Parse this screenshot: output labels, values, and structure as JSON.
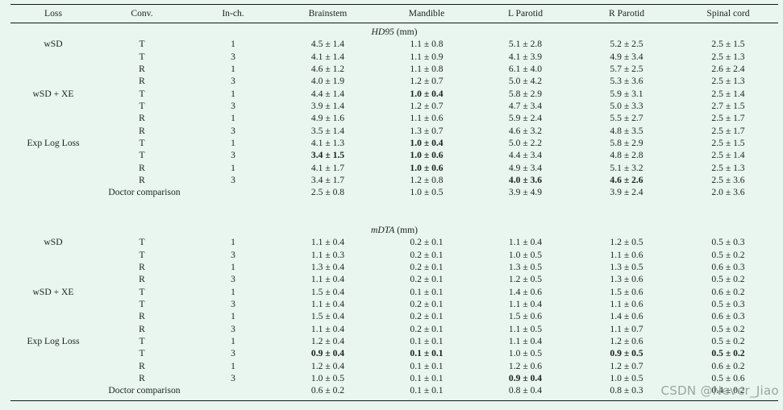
{
  "table": {
    "columns": [
      "Loss",
      "Conv.",
      "In-ch.",
      "Brainstem",
      "Mandible",
      "L Parotid",
      "R Parotid",
      "Spinal cord"
    ],
    "organ_columns": [
      "Brainstem",
      "Mandible",
      "L Parotid",
      "R Parotid",
      "Spinal cord"
    ],
    "sections": [
      {
        "label_italic": "HD95",
        "label_unit": "(mm)",
        "rows": [
          {
            "loss": "wSD",
            "conv": "T",
            "inch": "1",
            "values": [
              "4.5 ± 1.4",
              "1.1 ± 0.8",
              "5.1 ± 2.8",
              "5.2 ± 2.5",
              "2.5 ± 1.5"
            ],
            "bold": []
          },
          {
            "loss": "",
            "conv": "T",
            "inch": "3",
            "values": [
              "4.1 ± 1.4",
              "1.1 ± 0.9",
              "4.1 ± 3.9",
              "4.9 ± 3.4",
              "2.5 ± 1.3"
            ],
            "bold": []
          },
          {
            "loss": "",
            "conv": "R",
            "inch": "1",
            "values": [
              "4.6 ± 1.2",
              "1.1 ± 0.8",
              "6.1 ± 4.0",
              "5.7 ± 2.5",
              "2.6 ± 2.4"
            ],
            "bold": []
          },
          {
            "loss": "",
            "conv": "R",
            "inch": "3",
            "values": [
              "4.0 ± 1.9",
              "1.2 ± 0.7",
              "5.0 ± 4.2",
              "5.3 ± 3.6",
              "2.5 ± 1.3"
            ],
            "bold": []
          },
          {
            "loss": "wSD + XE",
            "conv": "T",
            "inch": "1",
            "values": [
              "4.4 ± 1.4",
              "1.0 ± 0.4",
              "5.8 ± 2.9",
              "5.9 ± 3.1",
              "2.5 ± 1.4"
            ],
            "bold": [
              1
            ]
          },
          {
            "loss": "",
            "conv": "T",
            "inch": "3",
            "values": [
              "3.9 ± 1.4",
              "1.2 ± 0.7",
              "4.7 ± 3.4",
              "5.0 ± 3.3",
              "2.7 ± 1.5"
            ],
            "bold": []
          },
          {
            "loss": "",
            "conv": "R",
            "inch": "1",
            "values": [
              "4.9 ± 1.6",
              "1.1 ± 0.6",
              "5.9 ± 2.4",
              "5.5 ± 2.7",
              "2.5 ± 1.7"
            ],
            "bold": []
          },
          {
            "loss": "",
            "conv": "R",
            "inch": "3",
            "values": [
              "3.5 ± 1.4",
              "1.3 ± 0.7",
              "4.6 ± 3.2",
              "4.8 ± 3.5",
              "2.5 ± 1.7"
            ],
            "bold": []
          },
          {
            "loss": "Exp Log Loss",
            "conv": "T",
            "inch": "1",
            "values": [
              "4.1 ± 1.3",
              "1.0 ± 0.4",
              "5.0 ± 2.2",
              "5.8 ± 2.9",
              "2.5 ± 1.5"
            ],
            "bold": [
              1
            ]
          },
          {
            "loss": "",
            "conv": "T",
            "inch": "3",
            "values": [
              "3.4 ± 1.5",
              "1.0 ± 0.6",
              "4.4 ± 3.4",
              "4.8 ± 2.8",
              "2.5 ± 1.4"
            ],
            "bold": [
              0,
              1
            ]
          },
          {
            "loss": "",
            "conv": "R",
            "inch": "1",
            "values": [
              "4.1 ± 1.7",
              "1.0 ± 0.6",
              "4.9 ± 3.4",
              "5.1 ± 3.2",
              "2.5 ± 1.3"
            ],
            "bold": [
              1
            ]
          },
          {
            "loss": "",
            "conv": "R",
            "inch": "3",
            "values": [
              "3.4 ± 1.7",
              "1.2 ± 0.8",
              "4.0 ± 3.6",
              "4.6 ± 2.6",
              "2.5 ± 3.6"
            ],
            "bold": [
              2,
              3
            ]
          },
          {
            "span": "Doctor comparison",
            "values": [
              "2.5 ± 0.8",
              "1.0 ± 0.5",
              "3.9 ± 4.9",
              "3.9 ± 2.4",
              "2.0 ± 3.6"
            ],
            "bold": []
          }
        ]
      },
      {
        "label_italic": "mDTA",
        "label_unit": "(mm)",
        "rows": [
          {
            "loss": "wSD",
            "conv": "T",
            "inch": "1",
            "values": [
              "1.1 ± 0.4",
              "0.2 ± 0.1",
              "1.1 ± 0.4",
              "1.2 ± 0.5",
              "0.5 ± 0.3"
            ],
            "bold": []
          },
          {
            "loss": "",
            "conv": "T",
            "inch": "3",
            "values": [
              "1.1 ± 0.3",
              "0.2 ± 0.1",
              "1.0 ± 0.5",
              "1.1 ± 0.6",
              "0.5 ± 0.2"
            ],
            "bold": []
          },
          {
            "loss": "",
            "conv": "R",
            "inch": "1",
            "values": [
              "1.3 ± 0.4",
              "0.2 ± 0.1",
              "1.3 ± 0.5",
              "1.3 ± 0.5",
              "0.6 ± 0.3"
            ],
            "bold": []
          },
          {
            "loss": "",
            "conv": "R",
            "inch": "3",
            "values": [
              "1.1 ± 0.4",
              "0.2 ± 0.1",
              "1.2 ± 0.5",
              "1.3 ± 0.6",
              "0.5 ± 0.2"
            ],
            "bold": []
          },
          {
            "loss": "wSD + XE",
            "conv": "T",
            "inch": "1",
            "values": [
              "1.5 ± 0.4",
              "0.1 ± 0.1",
              "1.4 ± 0.6",
              "1.5 ± 0.6",
              "0.6 ± 0.2"
            ],
            "bold": []
          },
          {
            "loss": "",
            "conv": "T",
            "inch": "3",
            "values": [
              "1.1 ± 0.4",
              "0.2 ± 0.1",
              "1.1 ± 0.4",
              "1.1 ± 0.6",
              "0.5 ± 0.3"
            ],
            "bold": []
          },
          {
            "loss": "",
            "conv": "R",
            "inch": "1",
            "values": [
              "1.5 ± 0.4",
              "0.2 ± 0.1",
              "1.5 ± 0.6",
              "1.4 ± 0.6",
              "0.6 ± 0.3"
            ],
            "bold": []
          },
          {
            "loss": "",
            "conv": "R",
            "inch": "3",
            "values": [
              "1.1 ± 0.4",
              "0.2 ± 0.1",
              "1.1 ± 0.5",
              "1.1 ± 0.7",
              "0.5 ± 0.2"
            ],
            "bold": []
          },
          {
            "loss": "Exp Log Loss",
            "conv": "T",
            "inch": "1",
            "values": [
              "1.2 ± 0.4",
              "0.1 ± 0.1",
              "1.1 ± 0.4",
              "1.2 ± 0.6",
              "0.5 ± 0.2"
            ],
            "bold": []
          },
          {
            "loss": "",
            "conv": "T",
            "inch": "3",
            "values": [
              "0.9 ± 0.4",
              "0.1 ± 0.1",
              "1.0 ± 0.5",
              "0.9 ± 0.5",
              "0.5 ± 0.2"
            ],
            "bold": [
              0,
              1,
              3,
              4
            ]
          },
          {
            "loss": "",
            "conv": "R",
            "inch": "1",
            "values": [
              "1.2 ± 0.4",
              "0.1 ± 0.1",
              "1.2 ± 0.6",
              "1.2 ± 0.7",
              "0.6 ± 0.2"
            ],
            "bold": []
          },
          {
            "loss": "",
            "conv": "R",
            "inch": "3",
            "values": [
              "1.0 ± 0.5",
              "0.1 ± 0.1",
              "0.9 ± 0.4",
              "1.0 ± 0.5",
              "0.5 ± 0.6"
            ],
            "bold": [
              2
            ]
          },
          {
            "span": "Doctor comparison",
            "values": [
              "0.6 ± 0.2",
              "0.1 ± 0.1",
              "0.8 ± 0.4",
              "0.8 ± 0.3",
              "0.4 ± 0.2"
            ],
            "bold": []
          }
        ]
      }
    ]
  },
  "watermark": "CSDN @Never_Jiao",
  "colors": {
    "background": "#e9f6f0",
    "rule": "#131715",
    "text": "#1c201e",
    "watermark": "#8d9e9a"
  }
}
